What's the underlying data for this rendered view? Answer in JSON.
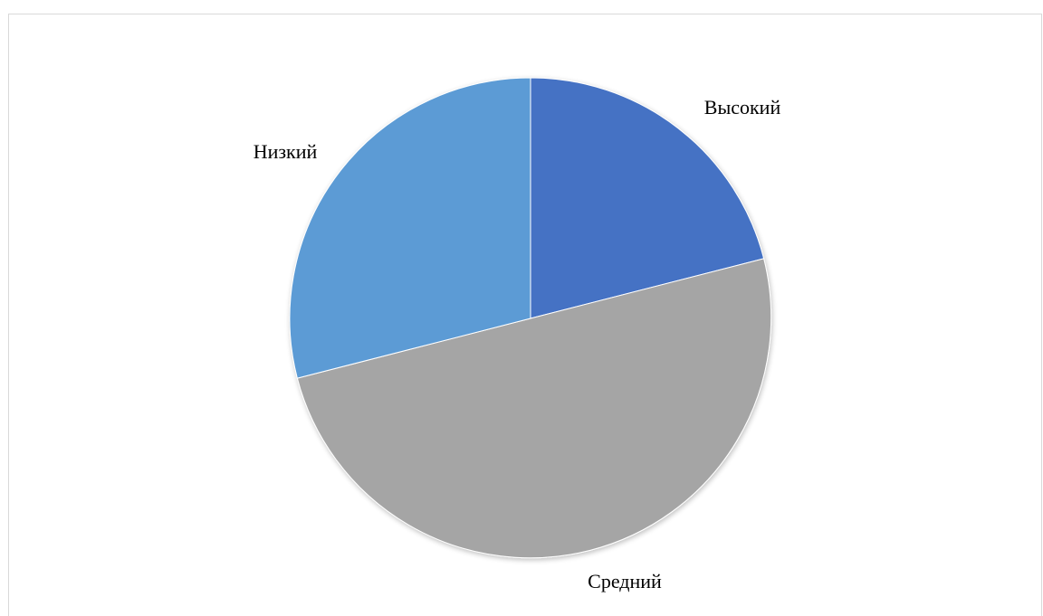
{
  "chart_data": {
    "type": "pie",
    "title": "",
    "categories": [
      "Высокий",
      "Средний",
      "Низкий"
    ],
    "values": [
      21,
      50,
      29
    ],
    "colors": [
      "#4472c4",
      "#a5a5a5",
      "#5b9bd5"
    ],
    "start_angle_deg": 0,
    "direction": "clockwise",
    "legend": "none",
    "data_labels": "category-name-outside"
  }
}
